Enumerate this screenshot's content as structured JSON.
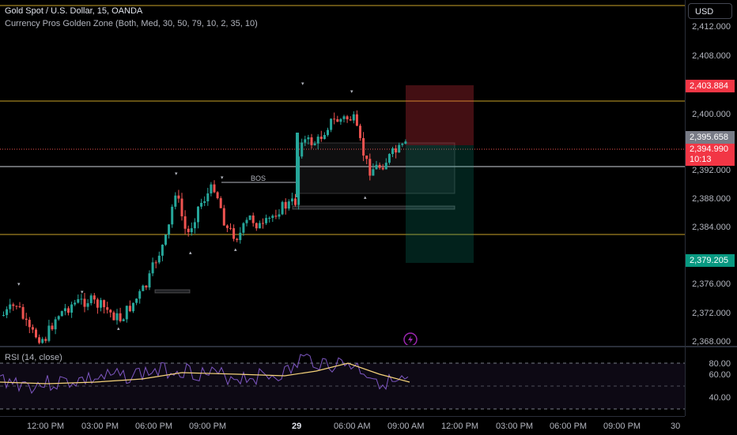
{
  "legend": {
    "symbol_line": "Gold Spot / U.S. Dollar, 15, OANDA",
    "indicator_line": "Currency Pros Golden Zone (Both, Med, 30, 50, 79, 10, 2, 35, 10)"
  },
  "currency_button": "USD",
  "price_ticks": [
    "2,412.000",
    "2,408.000",
    "2,400.000",
    "2,392.000",
    "2,388.000",
    "2,384.000",
    "2,376.000",
    "2,372.000",
    "2,368.000"
  ],
  "price_tags": {
    "target": "2,403.884",
    "entry": "2,395.658",
    "last": "2,394.990",
    "countdown": "10:13",
    "stop": "2,379.205"
  },
  "annotations": {
    "bos": "BOS"
  },
  "rsi": {
    "label": "RSI (14, close)",
    "ticks": [
      "80.00",
      "60.00",
      "40.00"
    ]
  },
  "time_axis": [
    "12:00 PM",
    "03:00 PM",
    "06:00 PM",
    "09:00 PM",
    "29",
    "06:00 AM",
    "09:00 AM",
    "12:00 PM",
    "03:00 PM",
    "06:00 PM",
    "09:00 PM",
    "30"
  ],
  "colors": {
    "up": "#26a69a",
    "down": "#ef5350",
    "level_line": "#c9a227",
    "target_tag": "#f23645",
    "stop_tag": "#089981",
    "entry_tag": "#787b86",
    "rsi_line": "#7e57c2",
    "rsi_ma": "#f5d37a",
    "alert_icon": "#9c27b0"
  },
  "icons": {
    "alert": "lightning-icon"
  }
}
